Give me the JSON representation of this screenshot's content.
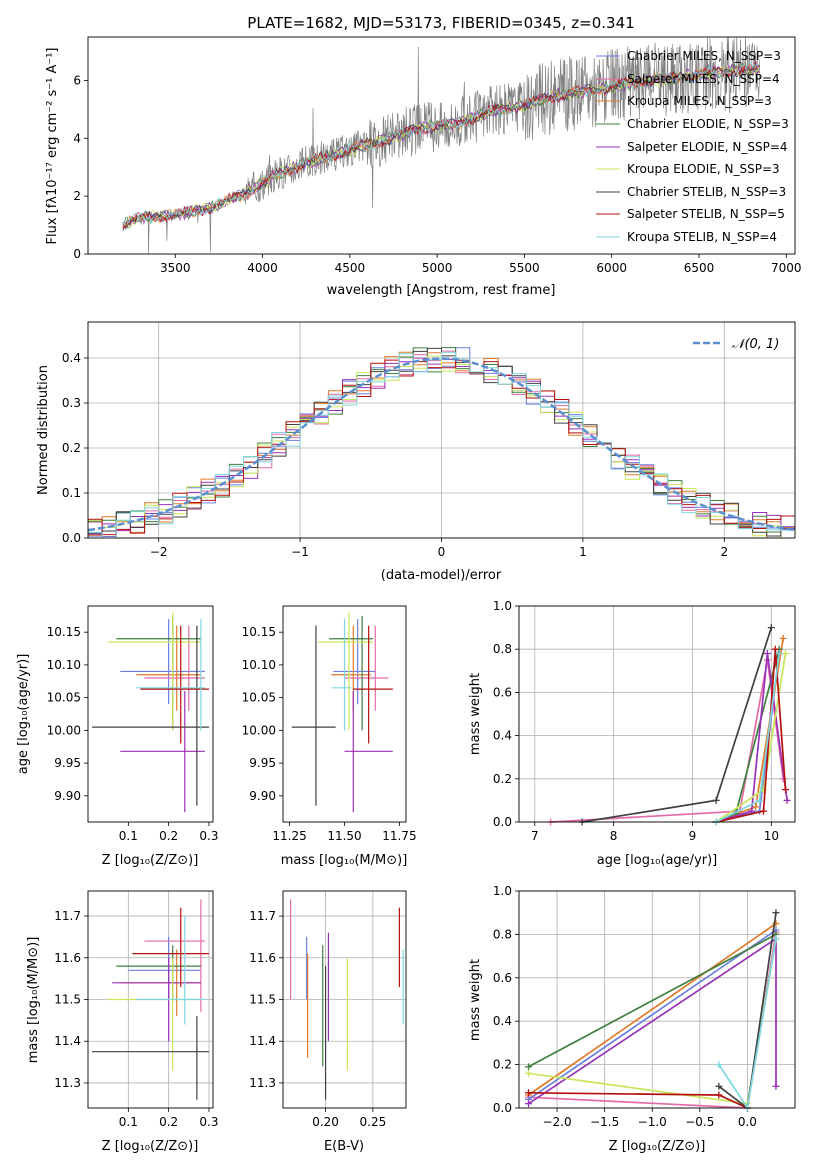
{
  "title": "PLATE=1682, MJD=53173, FIBERID=0345, z=0.341",
  "colors": {
    "chab_miles": "#6b7fe0",
    "salp_miles": "#e36aa6",
    "krou_miles": "#e07a2a",
    "chab_elodie": "#3f7f3f",
    "salp_elodie": "#9b30b8",
    "krou_elodie": "#c8e65a",
    "chab_stelib": "#404040",
    "salp_stelib": "#b41010",
    "krou_stelib": "#7fd6e0",
    "data": "#808080",
    "gauss": "#5b8fd0",
    "grid": "#b0b0b0"
  },
  "panels": {
    "spectrum": {
      "ylabel": "Flux [fλ10⁻¹⁷ erg cm⁻² s⁻¹ A⁻¹]",
      "xlabel": "wavelength [Angstrom, rest frame]",
      "legend": [
        "Chabrier MILES, N_SSP=3",
        "Salpeter MILES, N_SSP=4",
        "Kroupa MILES, N_SSP=3",
        "Chabrier ELODIE, N_SSP=3",
        "Salpeter ELODIE, N_SSP=4",
        "Kroupa ELODIE, N_SSP=3",
        "Chabrier STELIB, N_SSP=3",
        "Salpeter STELIB, N_SSP=5",
        "Kroupa STELIB, N_SSP=4"
      ]
    },
    "residuals": {
      "xlabel": "(data-model)/error",
      "ylabel": "Normed distribution",
      "legend": "𝒩(0, 1)"
    },
    "age_vs_Z": {
      "xlabel": "Z [log₁₀(Z/Z⊙)]",
      "ylabel": "age  [log₁₀(age/yr)]"
    },
    "age_vs_mass": {
      "xlabel": "mass [log₁₀(M/M⊙)]"
    },
    "weight_vs_age": {
      "xlabel": "age  [log₁₀(age/yr)]",
      "ylabel": "mass weight"
    },
    "mass_vs_Z": {
      "xlabel": "Z [log₁₀(Z/Z⊙)]",
      "ylabel": "mass [log₁₀(M/M⊙)]"
    },
    "mass_vs_ebv": {
      "xlabel": "E(B-V)"
    },
    "weight_vs_Z": {
      "xlabel": "Z [log₁₀(Z/Z⊙)]",
      "ylabel": "mass weight"
    }
  },
  "chart_data": [
    {
      "type": "line",
      "title": "PLATE=1682, MJD=53173, FIBERID=0345, z=0.341",
      "xlim": [
        3000,
        7050
      ],
      "ylim": [
        0,
        7.5
      ],
      "xticks": [
        3500,
        4000,
        4500,
        5000,
        5500,
        6000,
        6500,
        7000
      ],
      "yticks": [
        0,
        2,
        4,
        6
      ],
      "continuum_x": [
        3200,
        3300,
        3500,
        3700,
        3900,
        4100,
        4300,
        4500,
        4700,
        4900,
        5100,
        5300,
        5500,
        5700,
        5900,
        6100,
        6300,
        6500,
        6700,
        6850
      ],
      "continuum_y": [
        1.0,
        1.25,
        1.35,
        1.6,
        2.1,
        2.8,
        3.25,
        3.6,
        3.95,
        4.35,
        4.5,
        4.9,
        5.15,
        5.5,
        5.65,
        5.9,
        6.05,
        6.2,
        6.35,
        6.4
      ]
    },
    {
      "type": "line",
      "xlim": [
        -2.5,
        2.5
      ],
      "ylim": [
        0,
        0.48
      ],
      "xticks": [
        -2,
        -1,
        0,
        1,
        2
      ],
      "yticks": [
        0.0,
        0.1,
        0.2,
        0.3,
        0.4
      ],
      "series": [
        {
          "name": "𝒩(0, 1)",
          "function": "normal pdf, mean 0, sigma 1"
        }
      ]
    },
    {
      "type": "scatter",
      "xlim": [
        0.0,
        0.31
      ],
      "ylim": [
        9.86,
        10.19
      ],
      "xticks": [
        0.1,
        0.2,
        0.3
      ],
      "yticks": [
        9.9,
        9.95,
        10.0,
        10.05,
        10.1,
        10.15
      ],
      "points": [
        {
          "c": "chab_miles",
          "x": 0.2,
          "xe": [
            0.08,
            0.29
          ],
          "y": 10.09,
          "ye": [
            10.04,
            10.17
          ]
        },
        {
          "c": "salp_miles",
          "x": 0.25,
          "xe": [
            0.14,
            0.29
          ],
          "y": 10.08,
          "ye": [
            10.03,
            10.16
          ]
        },
        {
          "c": "krou_miles",
          "x": 0.22,
          "xe": [
            0.12,
            0.28
          ],
          "y": 10.085,
          "ye": [
            10.03,
            10.16
          ]
        },
        {
          "c": "chab_elodie",
          "x": 0.21,
          "xe": [
            0.07,
            0.28
          ],
          "y": 10.14,
          "ye": [
            10.0,
            10.175
          ]
        },
        {
          "c": "salp_elodie",
          "x": 0.24,
          "xe": [
            0.08,
            0.29
          ],
          "y": 9.968,
          "ye": [
            9.875,
            10.06
          ]
        },
        {
          "c": "krou_elodie",
          "x": 0.21,
          "xe": [
            0.05,
            0.28
          ],
          "y": 10.135,
          "ye": [
            10.0,
            10.18
          ]
        },
        {
          "c": "chab_stelib",
          "x": 0.27,
          "xe": [
            0.01,
            0.3
          ],
          "y": 10.005,
          "ye": [
            9.885,
            10.16
          ]
        },
        {
          "c": "salp_stelib",
          "x": 0.23,
          "xe": [
            0.13,
            0.3
          ],
          "y": 10.063,
          "ye": [
            9.98,
            10.16
          ]
        },
        {
          "c": "krou_stelib",
          "x": 0.28,
          "xe": [
            0.12,
            0.29
          ],
          "y": 10.065,
          "ye": [
            10.0,
            10.17
          ]
        }
      ]
    },
    {
      "type": "scatter",
      "xlim": [
        11.22,
        11.78
      ],
      "ylim": [
        9.86,
        10.19
      ],
      "xticks": [
        11.25,
        11.5,
        11.75
      ],
      "yticks": [
        9.9,
        9.95,
        10.0,
        10.05,
        10.1,
        10.15
      ],
      "points": [
        {
          "c": "chab_miles",
          "x": 11.56,
          "xe": [
            11.45,
            11.64
          ],
          "y": 10.09,
          "ye": [
            10.04,
            10.17
          ]
        },
        {
          "c": "salp_miles",
          "x": 11.64,
          "xe": [
            11.5,
            11.7
          ],
          "y": 10.08,
          "ye": [
            10.03,
            10.16
          ]
        },
        {
          "c": "krou_miles",
          "x": 11.54,
          "xe": [
            11.44,
            11.62
          ],
          "y": 10.085,
          "ye": [
            10.03,
            10.16
          ]
        },
        {
          "c": "chab_elodie",
          "x": 11.58,
          "xe": [
            11.43,
            11.63
          ],
          "y": 10.14,
          "ye": [
            10.0,
            10.175
          ]
        },
        {
          "c": "salp_elodie",
          "x": 11.54,
          "xe": [
            11.5,
            11.72
          ],
          "y": 9.968,
          "ye": [
            9.875,
            10.06
          ]
        },
        {
          "c": "krou_elodie",
          "x": 11.52,
          "xe": [
            11.38,
            11.63
          ],
          "y": 10.135,
          "ye": [
            10.0,
            10.18
          ]
        },
        {
          "c": "chab_stelib",
          "x": 11.37,
          "xe": [
            11.26,
            11.46
          ],
          "y": 10.005,
          "ye": [
            9.885,
            10.16
          ]
        },
        {
          "c": "salp_stelib",
          "x": 11.61,
          "xe": [
            11.54,
            11.72
          ],
          "y": 10.063,
          "ye": [
            9.98,
            10.16
          ]
        },
        {
          "c": "krou_stelib",
          "x": 11.5,
          "xe": [
            11.44,
            11.53
          ],
          "y": 10.065,
          "ye": [
            10.0,
            10.17
          ]
        }
      ]
    },
    {
      "type": "line",
      "xlim": [
        6.8,
        10.3
      ],
      "ylim": [
        0,
        1.0
      ],
      "xticks": [
        7,
        8,
        9,
        10
      ],
      "yticks": [
        0.0,
        0.2,
        0.4,
        0.6,
        0.8,
        1.0
      ],
      "series": [
        {
          "c": "chab_miles",
          "pts": [
            [
              9.3,
              0.0
            ],
            [
              9.85,
              0.05
            ],
            [
              10.1,
              0.78
            ]
          ]
        },
        {
          "c": "salp_miles",
          "pts": [
            [
              7.2,
              0.0
            ],
            [
              9.6,
              0.05
            ],
            [
              9.95,
              0.75
            ],
            [
              10.15,
              0.2
            ]
          ]
        },
        {
          "c": "krou_miles",
          "pts": [
            [
              9.3,
              0.0
            ],
            [
              9.8,
              0.07
            ],
            [
              10.15,
              0.85
            ]
          ]
        },
        {
          "c": "chab_elodie",
          "pts": [
            [
              9.3,
              0.0
            ],
            [
              9.55,
              0.04
            ],
            [
              10.1,
              0.8
            ]
          ]
        },
        {
          "c": "salp_elodie",
          "pts": [
            [
              9.3,
              0.0
            ],
            [
              9.75,
              0.05
            ],
            [
              9.95,
              0.78
            ],
            [
              10.2,
              0.1
            ]
          ]
        },
        {
          "c": "krou_elodie",
          "pts": [
            [
              9.3,
              0.0
            ],
            [
              9.9,
              0.15
            ],
            [
              10.18,
              0.78
            ]
          ]
        },
        {
          "c": "chab_stelib",
          "pts": [
            [
              7.6,
              0.0
            ],
            [
              9.3,
              0.1
            ],
            [
              10.0,
              0.9
            ]
          ]
        },
        {
          "c": "salp_stelib",
          "pts": [
            [
              9.3,
              0.0
            ],
            [
              9.9,
              0.05
            ],
            [
              10.05,
              0.8
            ],
            [
              10.18,
              0.15
            ]
          ]
        },
        {
          "c": "krou_stelib",
          "pts": [
            [
              9.3,
              0.0
            ],
            [
              9.85,
              0.1
            ],
            [
              10.1,
              0.78
            ]
          ]
        }
      ]
    },
    {
      "type": "scatter",
      "xlim": [
        0.0,
        0.31
      ],
      "ylim": [
        11.24,
        11.76
      ],
      "xticks": [
        0.1,
        0.2,
        0.3
      ],
      "yticks": [
        11.3,
        11.4,
        11.5,
        11.6,
        11.7
      ],
      "points": [
        {
          "c": "chab_miles",
          "x": 0.2,
          "xe": [
            0.1,
            0.28
          ],
          "y": 11.57,
          "ye": [
            11.5,
            11.65
          ]
        },
        {
          "c": "salp_miles",
          "x": 0.28,
          "xe": [
            0.14,
            0.29
          ],
          "y": 11.64,
          "ye": [
            11.47,
            11.74
          ]
        },
        {
          "c": "krou_miles",
          "x": 0.22,
          "xe": [
            0.08,
            0.28
          ],
          "y": 11.54,
          "ye": [
            11.46,
            11.62
          ]
        },
        {
          "c": "chab_elodie",
          "x": 0.21,
          "xe": [
            0.07,
            0.28
          ],
          "y": 11.58,
          "ye": [
            11.5,
            11.63
          ]
        },
        {
          "c": "salp_elodie",
          "x": 0.2,
          "xe": [
            0.06,
            0.28
          ],
          "y": 11.54,
          "ye": [
            11.4,
            11.6
          ]
        },
        {
          "c": "krou_elodie",
          "x": 0.21,
          "xe": [
            0.05,
            0.28
          ],
          "y": 11.5,
          "ye": [
            11.33,
            11.6
          ]
        },
        {
          "c": "chab_stelib",
          "x": 0.27,
          "xe": [
            0.01,
            0.3
          ],
          "y": 11.375,
          "ye": [
            11.26,
            11.46
          ]
        },
        {
          "c": "salp_stelib",
          "x": 0.23,
          "xe": [
            0.11,
            0.3
          ],
          "y": 11.61,
          "ye": [
            11.53,
            11.72
          ]
        },
        {
          "c": "krou_stelib",
          "x": 0.24,
          "xe": [
            0.12,
            0.29
          ],
          "y": 11.5,
          "ye": [
            11.44,
            11.7
          ]
        }
      ]
    },
    {
      "type": "scatter",
      "xlim": [
        0.155,
        0.285
      ],
      "ylim": [
        11.24,
        11.76
      ],
      "xticks": [
        0.2,
        0.25
      ],
      "yticks": [
        11.3,
        11.4,
        11.5,
        11.6,
        11.7
      ],
      "points": [
        {
          "c": "salp_miles",
          "x": 0.163,
          "ye": [
            11.5,
            11.74
          ]
        },
        {
          "c": "chab_miles",
          "x": 0.18,
          "ye": [
            11.5,
            11.65
          ]
        },
        {
          "c": "krou_miles",
          "x": 0.181,
          "ye": [
            11.36,
            11.61
          ]
        },
        {
          "c": "chab_elodie",
          "x": 0.197,
          "ye": [
            11.34,
            11.63
          ]
        },
        {
          "c": "chab_stelib",
          "x": 0.2,
          "ye": [
            11.26,
            11.58
          ]
        },
        {
          "c": "salp_elodie",
          "x": 0.203,
          "ye": [
            11.4,
            11.66
          ]
        },
        {
          "c": "krou_elodie",
          "x": 0.223,
          "ye": [
            11.33,
            11.6
          ]
        },
        {
          "c": "salp_stelib",
          "x": 0.278,
          "ye": [
            11.53,
            11.72
          ]
        },
        {
          "c": "krou_stelib",
          "x": 0.282,
          "ye": [
            11.44,
            11.62
          ]
        }
      ]
    },
    {
      "type": "line",
      "xlim": [
        -2.4,
        0.5
      ],
      "ylim": [
        0,
        1.0
      ],
      "xticks": [
        -2.0,
        -1.5,
        -1.0,
        -0.5,
        0.0
      ],
      "yticks": [
        0.0,
        0.2,
        0.4,
        0.6,
        0.8,
        1.0
      ],
      "series": [
        {
          "c": "salp_miles",
          "pts": [
            [
              -2.3,
              0.05
            ],
            [
              0.0,
              0.0
            ],
            [
              0.3,
              0.81
            ]
          ]
        },
        {
          "c": "krou_miles",
          "pts": [
            [
              -2.3,
              0.06
            ],
            [
              0.3,
              0.85
            ]
          ]
        },
        {
          "c": "chab_miles",
          "pts": [
            [
              -2.3,
              0.04
            ],
            [
              0.3,
              0.82
            ]
          ]
        },
        {
          "c": "chab_elodie",
          "pts": [
            [
              -2.3,
              0.19
            ],
            [
              0.3,
              0.8
            ]
          ]
        },
        {
          "c": "salp_elodie",
          "pts": [
            [
              -2.3,
              0.02
            ],
            [
              0.3,
              0.78
            ],
            [
              0.3,
              0.1
            ]
          ]
        },
        {
          "c": "krou_elodie",
          "pts": [
            [
              -2.3,
              0.16
            ],
            [
              0.0,
              0.02
            ],
            [
              0.3,
              0.78
            ]
          ]
        },
        {
          "c": "chab_stelib",
          "pts": [
            [
              -0.3,
              0.1
            ],
            [
              0.0,
              0.0
            ],
            [
              0.3,
              0.9
            ]
          ]
        },
        {
          "c": "salp_stelib",
          "pts": [
            [
              -2.3,
              0.07
            ],
            [
              -0.3,
              0.06
            ],
            [
              0.0,
              0.0
            ]
          ]
        },
        {
          "c": "krou_stelib",
          "pts": [
            [
              -0.3,
              0.2
            ],
            [
              0.0,
              0.0
            ],
            [
              0.3,
              0.78
            ]
          ]
        }
      ]
    }
  ]
}
